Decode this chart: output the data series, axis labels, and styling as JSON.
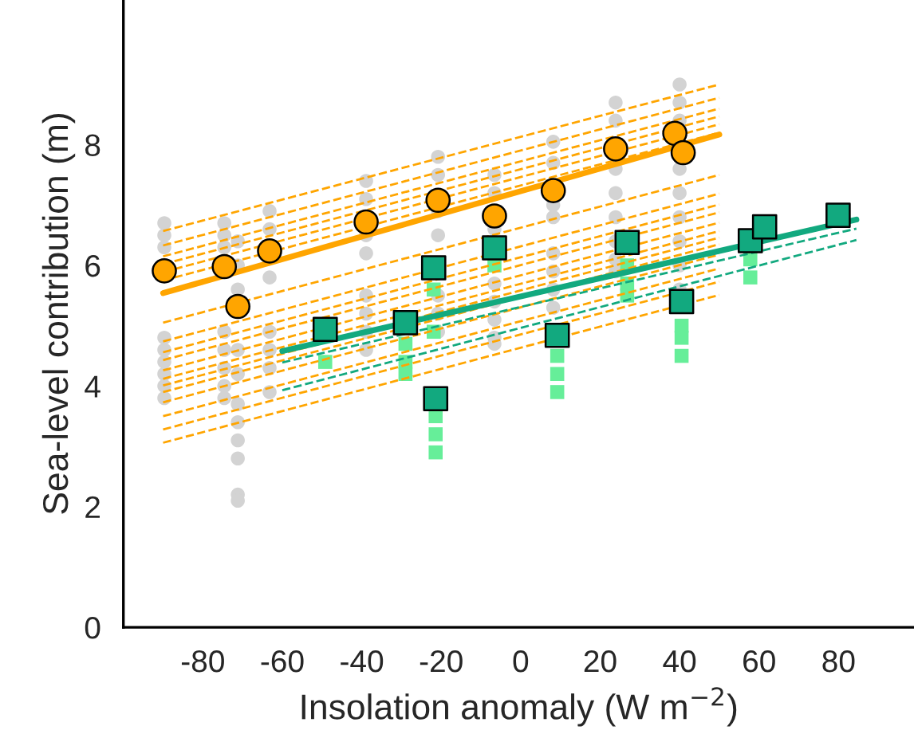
{
  "chart_data": {
    "type": "scatter",
    "xlabel": "Insolation anomaly (W m$^{−2}$)",
    "ylabel": "Sea-level contribution (m)",
    "xlim": [
      -100,
      99
    ],
    "ylim": [
      0,
      10.4
    ],
    "xticks": [
      -80,
      -60,
      -40,
      -20,
      0,
      20,
      40,
      60,
      80
    ],
    "yticks": [
      0,
      2,
      4,
      6,
      8
    ],
    "grid": false,
    "legend": false,
    "series": [
      {
        "marker": "circle",
        "color": "#d3d3d3",
        "x": [
          -89.7,
          -89.7,
          -89.7,
          -89.7,
          -89.7,
          -89.7,
          -89.7,
          -89.7,
          -89.7,
          -74.6,
          -74.6,
          -74.6,
          -74.6,
          -74.6,
          -74.6,
          -74.6,
          -74.6,
          -71.2,
          -71.2,
          -71.2,
          -71.2,
          -71.2,
          -71.2,
          -71.2,
          -71.2,
          -71.2,
          -71.2,
          -71.2,
          -63.2,
          -63.2,
          -63.2,
          -63.2,
          -63.2,
          -63.2,
          -63.2,
          -38.9,
          -38.9,
          -38.9,
          -38.9,
          -38.9,
          -38.9,
          -38.9,
          -38.9,
          -20.8,
          -20.8,
          -20.8,
          -20.8,
          -20.8,
          -20.8,
          -20.8,
          -6.6,
          -6.6,
          -6.6,
          -6.6,
          -6.6,
          -6.6,
          -6.6,
          -6.6,
          8.2,
          8.2,
          8.2,
          8.2,
          8.2,
          8.2,
          8.2,
          8.2,
          23.9,
          23.9,
          23.9,
          23.9,
          23.9,
          23.9,
          23.9,
          23.9,
          40,
          40,
          40,
          40,
          40,
          40,
          40,
          40,
          40
        ],
        "values": [
          6.7,
          6.5,
          6.3,
          4.8,
          4.6,
          4.4,
          4.2,
          4.0,
          3.8,
          6.7,
          6.5,
          6.3,
          4.9,
          4.6,
          4.3,
          4.0,
          3.8,
          6.4,
          6.0,
          5.6,
          4.6,
          4.2,
          3.7,
          3.4,
          3.1,
          2.8,
          2.2,
          2.1,
          6.9,
          6.6,
          5.8,
          4.9,
          4.6,
          4.3,
          3.9,
          7.4,
          7.1,
          6.5,
          6.2,
          5.5,
          5.2,
          4.9,
          4.6,
          7.8,
          7.5,
          6.9,
          6.5,
          5.5,
          5.2,
          4.9,
          7.5,
          7.2,
          6.6,
          5.7,
          5.4,
          5.1,
          4.8,
          4.7,
          8.05,
          7.7,
          7.0,
          6.8,
          6.2,
          5.9,
          5.6,
          5.3,
          8.7,
          8.4,
          7.6,
          7.2,
          6.8,
          6.4,
          6.1,
          5.9,
          9.0,
          8.7,
          8.4,
          7.6,
          7.2,
          6.8,
          6.4,
          6.0,
          5.6
        ]
      },
      {
        "type": "line",
        "line_style": "dashed",
        "color": "#ffa500",
        "x": [
          -90,
          50
        ],
        "values": [
          6.57,
          9.0
        ]
      },
      {
        "type": "line",
        "line_style": "dashed",
        "color": "#ffa500",
        "x": [
          -90,
          50
        ],
        "values": [
          6.33,
          8.78
        ]
      },
      {
        "type": "line",
        "line_style": "dashed",
        "color": "#ffa500",
        "x": [
          -90,
          50
        ],
        "values": [
          6.15,
          8.6
        ]
      },
      {
        "type": "line",
        "line_style": "dashed",
        "color": "#ffa500",
        "x": [
          -90,
          50
        ],
        "values": [
          6.02,
          8.47
        ]
      },
      {
        "type": "line",
        "line_style": "dashed",
        "color": "#ffa500",
        "x": [
          -90,
          50
        ],
        "values": [
          5.89,
          8.34
        ]
      },
      {
        "type": "line",
        "line_style": "dashed",
        "color": "#ffa500",
        "x": [
          -90,
          50
        ],
        "values": [
          5.75,
          8.2
        ]
      },
      {
        "type": "line",
        "line_style": "dashed",
        "color": "#ffa500",
        "x": [
          -90,
          50
        ],
        "values": [
          5.05,
          7.5
        ]
      },
      {
        "type": "line",
        "line_style": "dashed",
        "color": "#ffa500",
        "x": [
          -90,
          50
        ],
        "values": [
          4.74,
          7.19
        ]
      },
      {
        "type": "line",
        "line_style": "dashed",
        "color": "#ffa500",
        "x": [
          -90,
          50
        ],
        "values": [
          4.56,
          7.01
        ]
      },
      {
        "type": "line",
        "line_style": "dashed",
        "color": "#ffa500",
        "x": [
          -90,
          50
        ],
        "values": [
          4.43,
          6.88
        ]
      },
      {
        "type": "line",
        "line_style": "dashed",
        "color": "#ffa500",
        "x": [
          -90,
          50
        ],
        "values": [
          4.26,
          6.71
        ]
      },
      {
        "type": "line",
        "line_style": "dashed",
        "color": "#ffa500",
        "x": [
          -90,
          50
        ],
        "values": [
          4.12,
          6.57
        ]
      },
      {
        "type": "line",
        "line_style": "dashed",
        "color": "#ffa500",
        "x": [
          -90,
          50
        ],
        "values": [
          4.01,
          6.46
        ]
      },
      {
        "type": "line",
        "line_style": "dashed",
        "color": "#ffa500",
        "x": [
          -90,
          50
        ],
        "values": [
          3.9,
          6.35
        ]
      },
      {
        "type": "line",
        "line_style": "dashed",
        "color": "#ffa500",
        "x": [
          -90,
          50
        ],
        "values": [
          3.73,
          6.18
        ]
      },
      {
        "type": "line",
        "line_style": "dashed",
        "color": "#ffa500",
        "x": [
          -90,
          50
        ],
        "values": [
          3.5,
          5.95
        ]
      },
      {
        "type": "line",
        "line_style": "dashed",
        "color": "#ffa500",
        "x": [
          -90,
          50
        ],
        "values": [
          3.28,
          5.73
        ]
      },
      {
        "type": "line",
        "line_style": "dashed",
        "color": "#ffa500",
        "x": [
          -90,
          50
        ],
        "values": [
          3.06,
          5.51
        ]
      },
      {
        "type": "line",
        "line_style": "solid",
        "color": "#ffa500",
        "x": [
          -90,
          50
        ],
        "values": [
          5.54,
          8.17
        ]
      },
      {
        "marker": "square",
        "color": "#66ee99",
        "x": [
          -49.2,
          -29,
          -29,
          -29,
          -21.9,
          -21.9,
          -21.4,
          -21.4,
          -21.4,
          -6.6,
          9.2,
          9.2,
          9.2,
          26.8,
          26.8,
          26.8,
          40.5,
          40.5,
          40.5,
          57.8,
          57.8
        ],
        "values": [
          4.4,
          4.7,
          4.4,
          4.2,
          5.6,
          4.9,
          3.5,
          3.2,
          2.9,
          6.0,
          4.5,
          4.2,
          3.9,
          6.0,
          5.7,
          5.5,
          5.0,
          4.8,
          4.5,
          6.1,
          5.8
        ]
      },
      {
        "type": "line",
        "line_style": "dashed",
        "color": "#12a97f",
        "x": [
          -60,
          84.5
        ],
        "values": [
          4.39,
          6.61
        ]
      },
      {
        "type": "line",
        "line_style": "dashed",
        "color": "#12a97f",
        "x": [
          -60,
          84.5
        ],
        "values": [
          3.93,
          6.42
        ]
      },
      {
        "type": "line",
        "line_style": "solid",
        "color": "#12a97f",
        "x": [
          -60,
          84.5
        ],
        "values": [
          4.58,
          6.76
        ]
      },
      {
        "marker": "square",
        "color": "#12a97f",
        "x": [
          -49.2,
          -29.0,
          -21.9,
          -21.4,
          -6.6,
          9.2,
          26.8,
          40.5,
          57.8,
          61.4,
          79.9
        ],
        "values": [
          4.94,
          5.05,
          5.96,
          3.79,
          6.29,
          4.84,
          6.38,
          5.4,
          6.41,
          6.64,
          6.83
        ]
      },
      {
        "marker": "circle",
        "color": "#ffa500",
        "x": [
          -89.7,
          -74.6,
          -71.2,
          -63.2,
          -38.9,
          -20.8,
          -6.6,
          8.2,
          23.9,
          38.8,
          40.9
        ],
        "values": [
          5.91,
          5.98,
          5.32,
          6.24,
          6.72,
          7.08,
          6.82,
          7.24,
          7.93,
          8.19,
          7.87
        ]
      }
    ]
  }
}
